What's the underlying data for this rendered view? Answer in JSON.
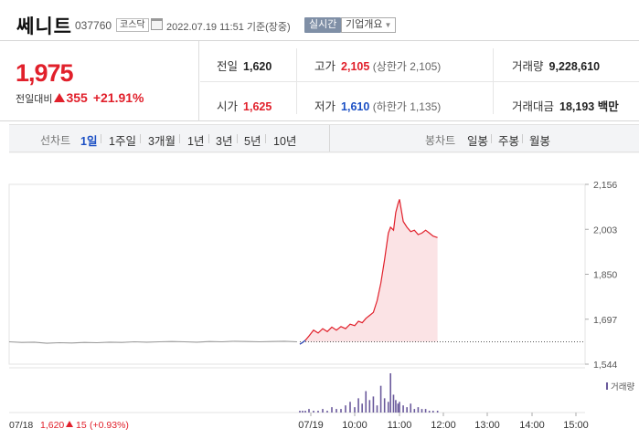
{
  "header": {
    "name": "쎄니트",
    "code": "037760",
    "market": "코스닥",
    "timestamp": "2022.07.19 11:51 기준(장중)",
    "realtime_label": "실시간",
    "overview_label": "기업개요"
  },
  "price": {
    "current": "1,975",
    "change_label": "전일대비",
    "change_amount": "355",
    "change_percent": "+21.91%",
    "direction": "up"
  },
  "quotes": {
    "prev_close": {
      "label": "전일",
      "value": "1,620"
    },
    "open": {
      "label": "시가",
      "value": "1,625"
    },
    "high": {
      "label": "고가",
      "value": "2,105",
      "sub": "(상한가 2,105)"
    },
    "low": {
      "label": "저가",
      "value": "1,610",
      "sub": "(하한가 1,135)"
    },
    "volume": {
      "label": "거래량",
      "value": "9,228,610"
    },
    "amount": {
      "label": "거래대금",
      "value": "18,193",
      "unit": "백만"
    }
  },
  "line_tabs": {
    "label": "선차트",
    "items": [
      "1일",
      "1주일",
      "3개월",
      "1년",
      "3년",
      "5년",
      "10년"
    ],
    "active": "1일"
  },
  "candle_tabs": {
    "label": "봉차트",
    "items": [
      "일봉",
      "주봉",
      "월봉"
    ]
  },
  "colors": {
    "up": "#e1202b",
    "down": "#1b4fc4",
    "area_fill": "#fbe3e5",
    "prev_day_line": "#9a9a9a",
    "volume_bar": "#6a5a9c"
  },
  "chart_data": {
    "type": "line",
    "y_ticks": [
      "2,156",
      "2,003",
      "1,850",
      "1,697",
      "1,544"
    ],
    "ylim": [
      1544,
      2156
    ],
    "x_ticks": [
      "07/19",
      "10:00",
      "11:00",
      "12:00",
      "13:00",
      "14:00",
      "15:00"
    ],
    "volume_label": "거래량",
    "reference_price": 1620,
    "prev_day": {
      "date": "07/18",
      "close": "1,620",
      "change": "15",
      "change_percent": "(+0.93%)",
      "values": [
        1620,
        1618,
        1619,
        1615,
        1617,
        1616,
        1618,
        1617,
        1619,
        1618,
        1620,
        1619,
        1620,
        1621,
        1620,
        1619,
        1621,
        1620,
        1622,
        1621,
        1620,
        1621,
        1622,
        1620
      ]
    },
    "today": {
      "x": [
        "09:00",
        "09:03",
        "09:06",
        "09:10",
        "09:15",
        "09:20",
        "09:25",
        "09:30",
        "09:35",
        "09:40",
        "09:45",
        "09:50",
        "09:55",
        "10:00",
        "10:05",
        "10:10",
        "10:15",
        "10:20",
        "10:25",
        "10:30",
        "10:35",
        "10:40",
        "10:45",
        "10:48",
        "10:52",
        "10:55",
        "10:58",
        "11:00",
        "11:05",
        "11:10",
        "11:15",
        "11:20",
        "11:25",
        "11:30",
        "11:35",
        "11:40",
        "11:45",
        "11:51"
      ],
      "values": [
        1612,
        1618,
        1625,
        1640,
        1660,
        1650,
        1665,
        1655,
        1670,
        1660,
        1672,
        1665,
        1680,
        1675,
        1690,
        1685,
        1700,
        1710,
        1720,
        1760,
        1820,
        1900,
        1990,
        2010,
        2000,
        2060,
        2090,
        2105,
        2030,
        2010,
        1995,
        2000,
        1985,
        1990,
        2000,
        1990,
        1980,
        1975
      ]
    },
    "volume": [
      1,
      1,
      1,
      2,
      1,
      1,
      2,
      1,
      3,
      2,
      2,
      4,
      6,
      3,
      8,
      5,
      12,
      7,
      9,
      4,
      15,
      8,
      6,
      22,
      10,
      7,
      5,
      6,
      4,
      3,
      5,
      2,
      3,
      2,
      2,
      1,
      1,
      1
    ]
  }
}
